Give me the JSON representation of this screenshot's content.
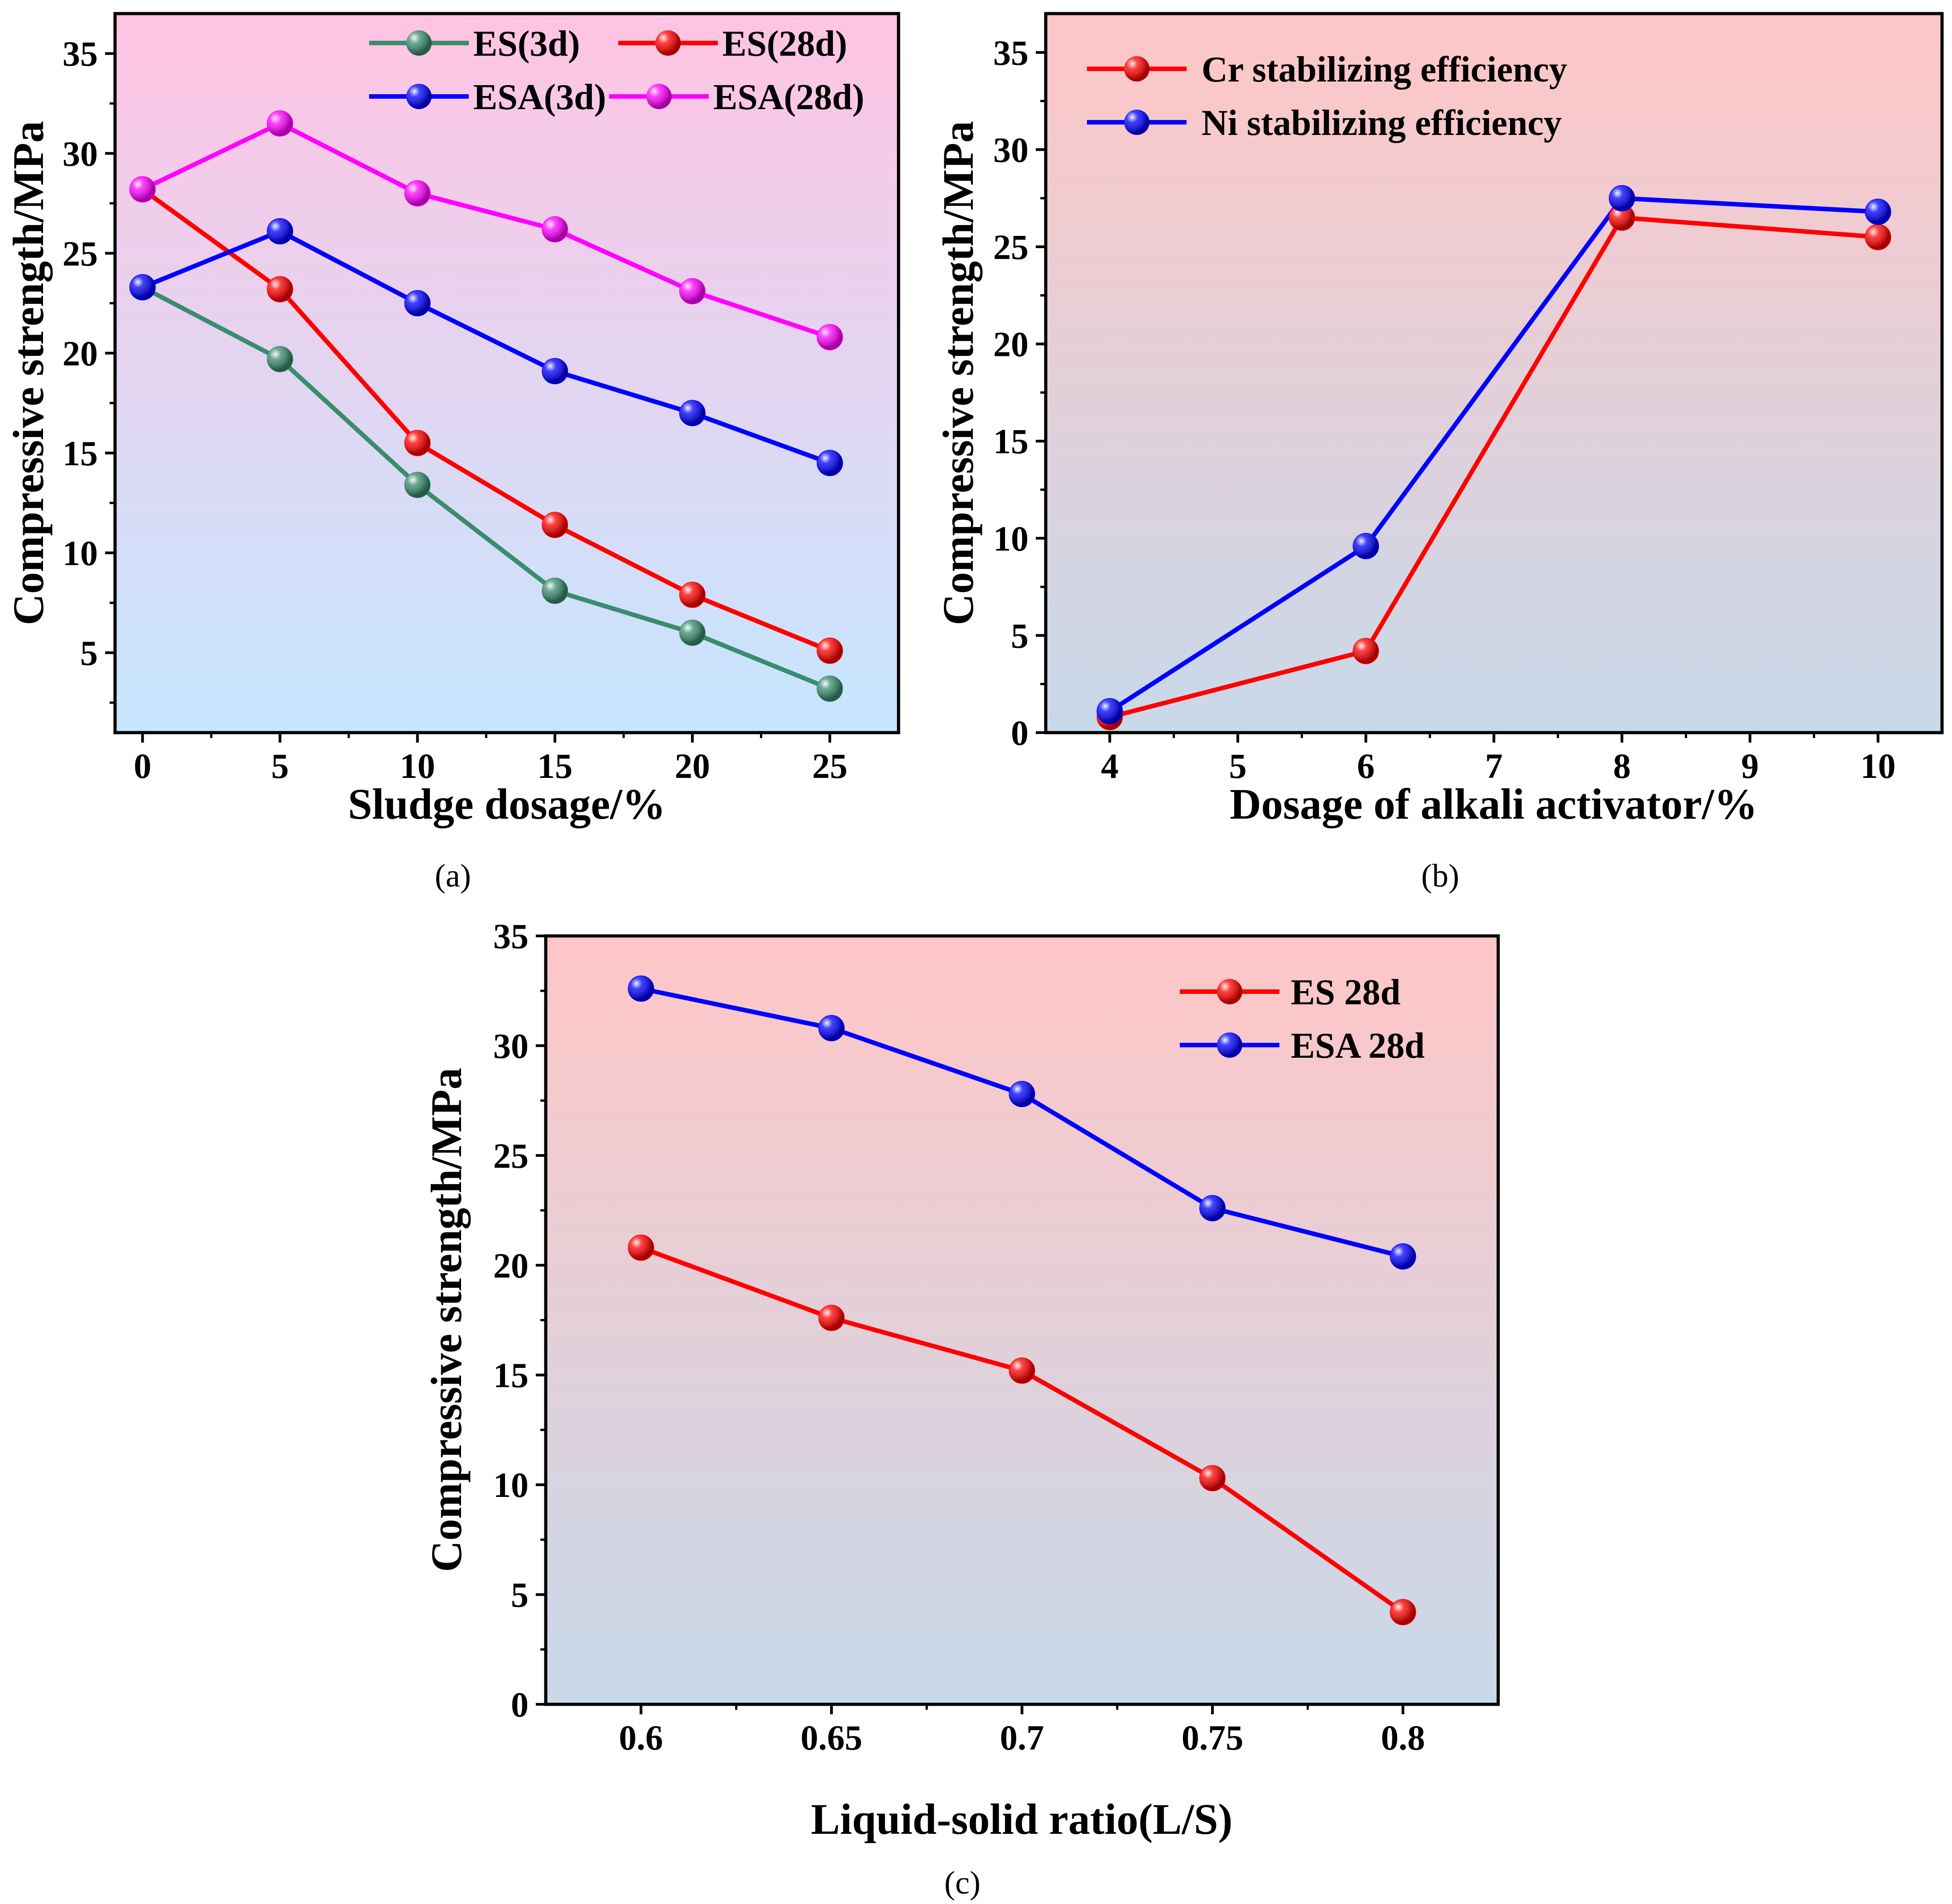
{
  "chart_data": [
    {
      "type": "line",
      "panel": "a",
      "caption": "(a)",
      "xlabel": "Sludge dosage/%",
      "ylabel": "Compressive strength/MPa",
      "x": [
        0,
        5,
        10,
        15,
        20,
        25
      ],
      "xlim": [
        -1,
        27.5
      ],
      "ylim": [
        1,
        37
      ],
      "xticks": [
        0,
        5,
        10,
        15,
        20,
        25
      ],
      "xtick_labels": [
        "0",
        "5",
        "10",
        "15",
        "20",
        "25"
      ],
      "yticks": [
        5,
        10,
        15,
        20,
        25,
        30,
        35
      ],
      "ytick_labels": [
        "5",
        "10",
        "15",
        "20",
        "25",
        "30",
        "35"
      ],
      "background": [
        "#ffc4e2",
        "#c6e6ff"
      ],
      "legend_position": "top-right",
      "series": [
        {
          "name": "ES(3d)",
          "color": "#3a8c6e",
          "values": [
            23.3,
            19.7,
            13.4,
            8.1,
            6.0,
            3.2
          ]
        },
        {
          "name": "ES(28d)",
          "color": "#ff0000",
          "values": [
            28.2,
            23.2,
            15.5,
            11.4,
            7.9,
            5.1
          ]
        },
        {
          "name": "ESA(3d)",
          "color": "#0000ff",
          "values": [
            23.3,
            26.1,
            22.5,
            19.1,
            17.0,
            14.5
          ]
        },
        {
          "name": "ESA(28d)",
          "color": "#ff00ff",
          "values": [
            28.2,
            31.5,
            28.0,
            26.2,
            23.1,
            20.8
          ]
        }
      ]
    },
    {
      "type": "line",
      "panel": "b",
      "caption": "(b)",
      "xlabel": "Dosage of alkali activator/%",
      "ylabel": "Compressive strength/MPa",
      "x": [
        4,
        6,
        8,
        10
      ],
      "xlim": [
        3.5,
        10.5
      ],
      "ylim": [
        0,
        37
      ],
      "xticks": [
        4,
        5,
        6,
        7,
        8,
        9,
        10
      ],
      "xtick_labels": [
        "4",
        "5",
        "6",
        "7",
        "8",
        "9",
        "10"
      ],
      "yticks": [
        0,
        5,
        10,
        15,
        20,
        25,
        30,
        35
      ],
      "ytick_labels": [
        "0",
        "5",
        "10",
        "15",
        "20",
        "25",
        "30",
        "35"
      ],
      "background": [
        "#ffc6c6",
        "#c8d9ea"
      ],
      "legend_position": "top-left",
      "series": [
        {
          "name": "Cr stabilizing efficiency",
          "color": "#ff0000",
          "values": [
            0.8,
            4.2,
            26.5,
            25.5
          ]
        },
        {
          "name": "Ni stabilizing efficiency",
          "color": "#0000ff",
          "values": [
            1.1,
            9.6,
            27.5,
            26.8
          ]
        }
      ]
    },
    {
      "type": "line",
      "panel": "c",
      "caption": "(c)",
      "xlabel": "Liquid-solid ratio(L/S)",
      "ylabel": "Compressive strength/MPa",
      "x": [
        0.6,
        0.65,
        0.7,
        0.75,
        0.8
      ],
      "xlim": [
        0.575,
        0.825
      ],
      "ylim": [
        0,
        35
      ],
      "xticks": [
        0.6,
        0.65,
        0.7,
        0.75,
        0.8
      ],
      "xtick_labels": [
        "0.6",
        "0.65",
        "0.7",
        "0.75",
        "0.8"
      ],
      "yticks": [
        0,
        5,
        10,
        15,
        20,
        25,
        30,
        35
      ],
      "ytick_labels": [
        "0",
        "5",
        "10",
        "15",
        "20",
        "25",
        "30",
        "35"
      ],
      "background": [
        "#ffc6c6",
        "#c8d9ea"
      ],
      "legend_position": "top-right",
      "series": [
        {
          "name": "ES 28d",
          "color": "#ff0000",
          "values": [
            20.8,
            17.6,
            15.2,
            10.3,
            4.2
          ]
        },
        {
          "name": "ESA 28d",
          "color": "#0000ff",
          "values": [
            32.6,
            30.8,
            27.8,
            22.6,
            20.4
          ]
        }
      ]
    }
  ]
}
